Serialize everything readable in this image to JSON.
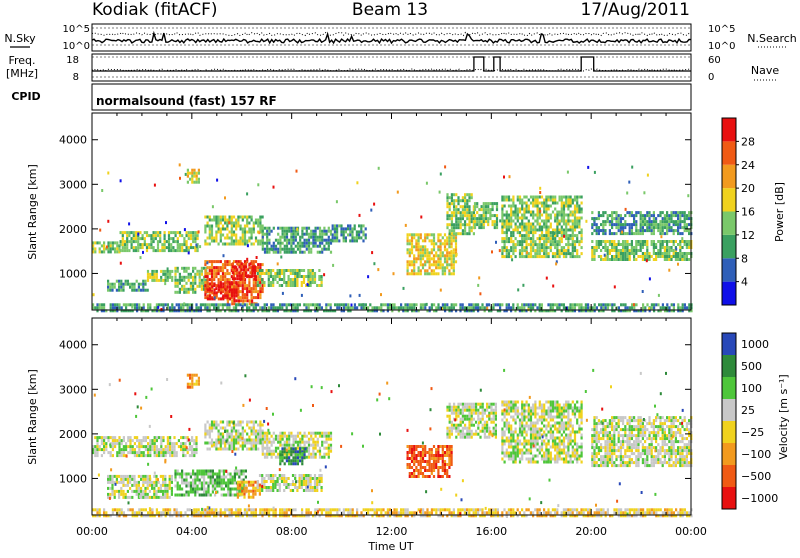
{
  "header": {
    "station": "Kodiak (fitACF)",
    "beam": "Beam 13",
    "date": "17/Aug/2011",
    "cpid_label": "CPID",
    "cpid_value": "normalsound (fast) 157 RF",
    "nsky_label": "N.Sky",
    "nsearch_label": "N.Search",
    "freq_label_1": "Freq.",
    "freq_label_2": "[MHz]",
    "nave_label": "Nave",
    "nsky_ticks": [
      "10^5",
      "10^0"
    ],
    "nsearch_ticks": [
      "10^5",
      "10^0"
    ],
    "freq_ticks": [
      "18",
      "8"
    ],
    "nave_ticks": [
      "60",
      "0"
    ]
  },
  "colors": {
    "power": [
      "#1010e8",
      "#2f5fb8",
      "#3aa060",
      "#7ac86a",
      "#f0d21e",
      "#f29a1e",
      "#f05a14",
      "#e81010"
    ],
    "velocity": [
      "#e81010",
      "#f05a14",
      "#f29a1e",
      "#f0d21e",
      "#c8c8c8",
      "#4ec63a",
      "#2e8a3a",
      "#2848b8"
    ]
  },
  "chart_data": [
    {
      "type": "heatmap",
      "name": "power",
      "ylabel": "Slant Range [km]",
      "xlabel": "",
      "xlim": [
        "00:00",
        "24:00"
      ],
      "ylim": [
        180,
        4600
      ],
      "x_ticks": [
        "00:00",
        "04:00",
        "08:00",
        "12:00",
        "16:00",
        "20:00",
        "00:00"
      ],
      "y_ticks": [
        1000,
        2000,
        3000,
        4000
      ],
      "colorbar": {
        "label": "Power [dB]",
        "ticks": [
          4,
          8,
          12,
          16,
          20,
          24,
          28
        ],
        "range": [
          0,
          32
        ]
      },
      "regions": [
        {
          "t0": 0.0,
          "t1": 1.1,
          "r0": 1480,
          "r1": 1720,
          "level": 3
        },
        {
          "t0": 1.1,
          "t1": 4.2,
          "r0": 1500,
          "r1": 1950,
          "level": 3
        },
        {
          "t0": 0.6,
          "t1": 2.2,
          "r0": 600,
          "r1": 860,
          "level": 2
        },
        {
          "t0": 2.2,
          "t1": 3.2,
          "r0": 820,
          "r1": 1080,
          "level": 3
        },
        {
          "t0": 3.3,
          "t1": 4.6,
          "r0": 600,
          "r1": 1150,
          "level": 3
        },
        {
          "t0": 4.5,
          "t1": 6.8,
          "r0": 480,
          "r1": 1300,
          "level": 6
        },
        {
          "t0": 4.6,
          "t1": 5.8,
          "r0": 450,
          "r1": 800,
          "level": 7
        },
        {
          "t0": 5.6,
          "t1": 6.5,
          "r0": 900,
          "r1": 1250,
          "level": 7
        },
        {
          "t0": 6.6,
          "t1": 9.2,
          "r0": 750,
          "r1": 1100,
          "level": 3
        },
        {
          "t0": 5.4,
          "t1": 6.6,
          "r0": 300,
          "r1": 420,
          "level": 6
        },
        {
          "t0": 4.5,
          "t1": 6.8,
          "r0": 1650,
          "r1": 2300,
          "level": 3
        },
        {
          "t0": 6.8,
          "t1": 9.6,
          "r0": 1500,
          "r1": 2050,
          "level": 2
        },
        {
          "t0": 3.8,
          "t1": 4.3,
          "r0": 3050,
          "r1": 3350,
          "level": 4
        },
        {
          "t0": 9.6,
          "t1": 11.0,
          "r0": 1700,
          "r1": 2100,
          "level": 2
        },
        {
          "t0": 12.6,
          "t1": 14.6,
          "r0": 1000,
          "r1": 1900,
          "level": 4
        },
        {
          "t0": 14.2,
          "t1": 15.3,
          "r0": 1900,
          "r1": 2800,
          "level": 3
        },
        {
          "t0": 15.3,
          "t1": 16.2,
          "r0": 2000,
          "r1": 2600,
          "level": 3
        },
        {
          "t0": 16.4,
          "t1": 19.6,
          "r0": 2000,
          "r1": 2750,
          "level": 3
        },
        {
          "t0": 16.4,
          "t1": 19.6,
          "r0": 1400,
          "r1": 1950,
          "level": 3
        },
        {
          "t0": 20.0,
          "t1": 24.0,
          "r0": 1900,
          "r1": 2400,
          "level": 2
        },
        {
          "t0": 20.0,
          "t1": 24.0,
          "r0": 1300,
          "r1": 1750,
          "level": 3
        },
        {
          "t0": 0.0,
          "t1": 24.0,
          "r0": 180,
          "r1": 330,
          "level": 2
        }
      ]
    },
    {
      "type": "heatmap",
      "name": "velocity",
      "ylabel": "Slant Range [km]",
      "xlabel": "Time UT",
      "xlim": [
        "00:00",
        "24:00"
      ],
      "ylim": [
        180,
        4600
      ],
      "x_ticks": [
        "00:00",
        "04:00",
        "08:00",
        "12:00",
        "16:00",
        "20:00",
        "00:00"
      ],
      "y_ticks": [
        1000,
        2000,
        3000,
        4000
      ],
      "colorbar": {
        "label": "Velocity [m s⁻¹]",
        "ticks": [
          "1000",
          "500",
          "100",
          "25",
          "−25",
          "−100",
          "−500",
          "−1000"
        ]
      },
      "regions": [
        {
          "t0": 0.0,
          "t1": 4.2,
          "r0": 1500,
          "r1": 1950,
          "level": 4
        },
        {
          "t0": 0.6,
          "t1": 3.2,
          "r0": 600,
          "r1": 1080,
          "level": 4
        },
        {
          "t0": 3.3,
          "t1": 6.2,
          "r0": 600,
          "r1": 1200,
          "level": 5
        },
        {
          "t0": 5.8,
          "t1": 6.7,
          "r0": 600,
          "r1": 950,
          "level": 2
        },
        {
          "t0": 6.6,
          "t1": 9.2,
          "r0": 700,
          "r1": 1100,
          "level": 4
        },
        {
          "t0": 4.5,
          "t1": 6.8,
          "r0": 1650,
          "r1": 2300,
          "level": 4
        },
        {
          "t0": 6.8,
          "t1": 9.6,
          "r0": 1500,
          "r1": 2050,
          "level": 4
        },
        {
          "t0": 7.5,
          "t1": 8.5,
          "r0": 1350,
          "r1": 1700,
          "level": 6
        },
        {
          "t0": 3.8,
          "t1": 4.3,
          "r0": 3050,
          "r1": 3350,
          "level": 2
        },
        {
          "t0": 12.6,
          "t1": 14.4,
          "r0": 1050,
          "r1": 1750,
          "level": 1
        },
        {
          "t0": 14.2,
          "t1": 16.2,
          "r0": 1900,
          "r1": 2700,
          "level": 4
        },
        {
          "t0": 16.4,
          "t1": 19.6,
          "r0": 1400,
          "r1": 2750,
          "level": 4
        },
        {
          "t0": 20.0,
          "t1": 24.0,
          "r0": 1300,
          "r1": 2400,
          "level": 4
        },
        {
          "t0": 0.0,
          "t1": 24.0,
          "r0": 180,
          "r1": 330,
          "level": 3
        }
      ]
    }
  ]
}
